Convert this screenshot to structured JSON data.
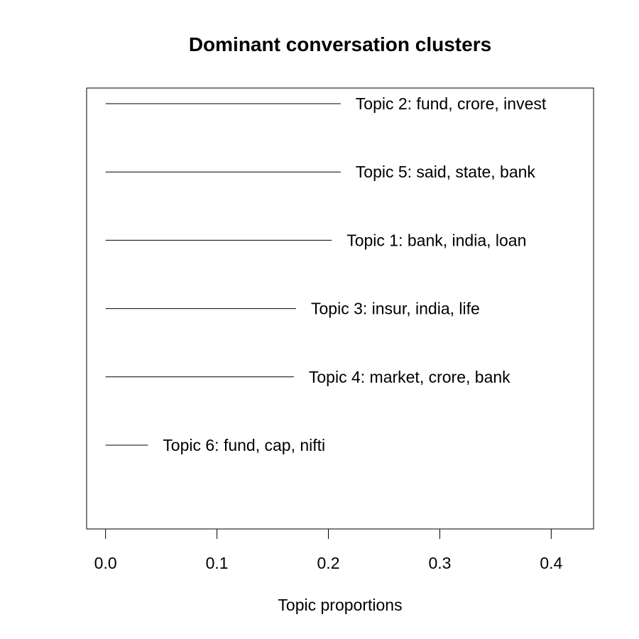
{
  "chart_data": {
    "type": "bar",
    "title": "Dominant conversation clusters",
    "xlabel": "Topic proportions",
    "ylabel": "",
    "orientation": "horizontal",
    "xlim": [
      -0.017,
      0.438
    ],
    "xticks": [
      0.0,
      0.1,
      0.2,
      0.3,
      0.4
    ],
    "xtick_labels": [
      "0.0",
      "0.1",
      "0.2",
      "0.3",
      "0.4"
    ],
    "grid": false,
    "categories": [
      "Topic 2: fund, crore, invest",
      "Topic 5: said, state, bank",
      "Topic 1: bank, india, loan",
      "Topic 3: insur, india, life",
      "Topic 4: market, crore, bank",
      "Topic 6: fund, cap, nifti"
    ],
    "values": [
      0.211,
      0.211,
      0.203,
      0.171,
      0.169,
      0.038
    ]
  }
}
